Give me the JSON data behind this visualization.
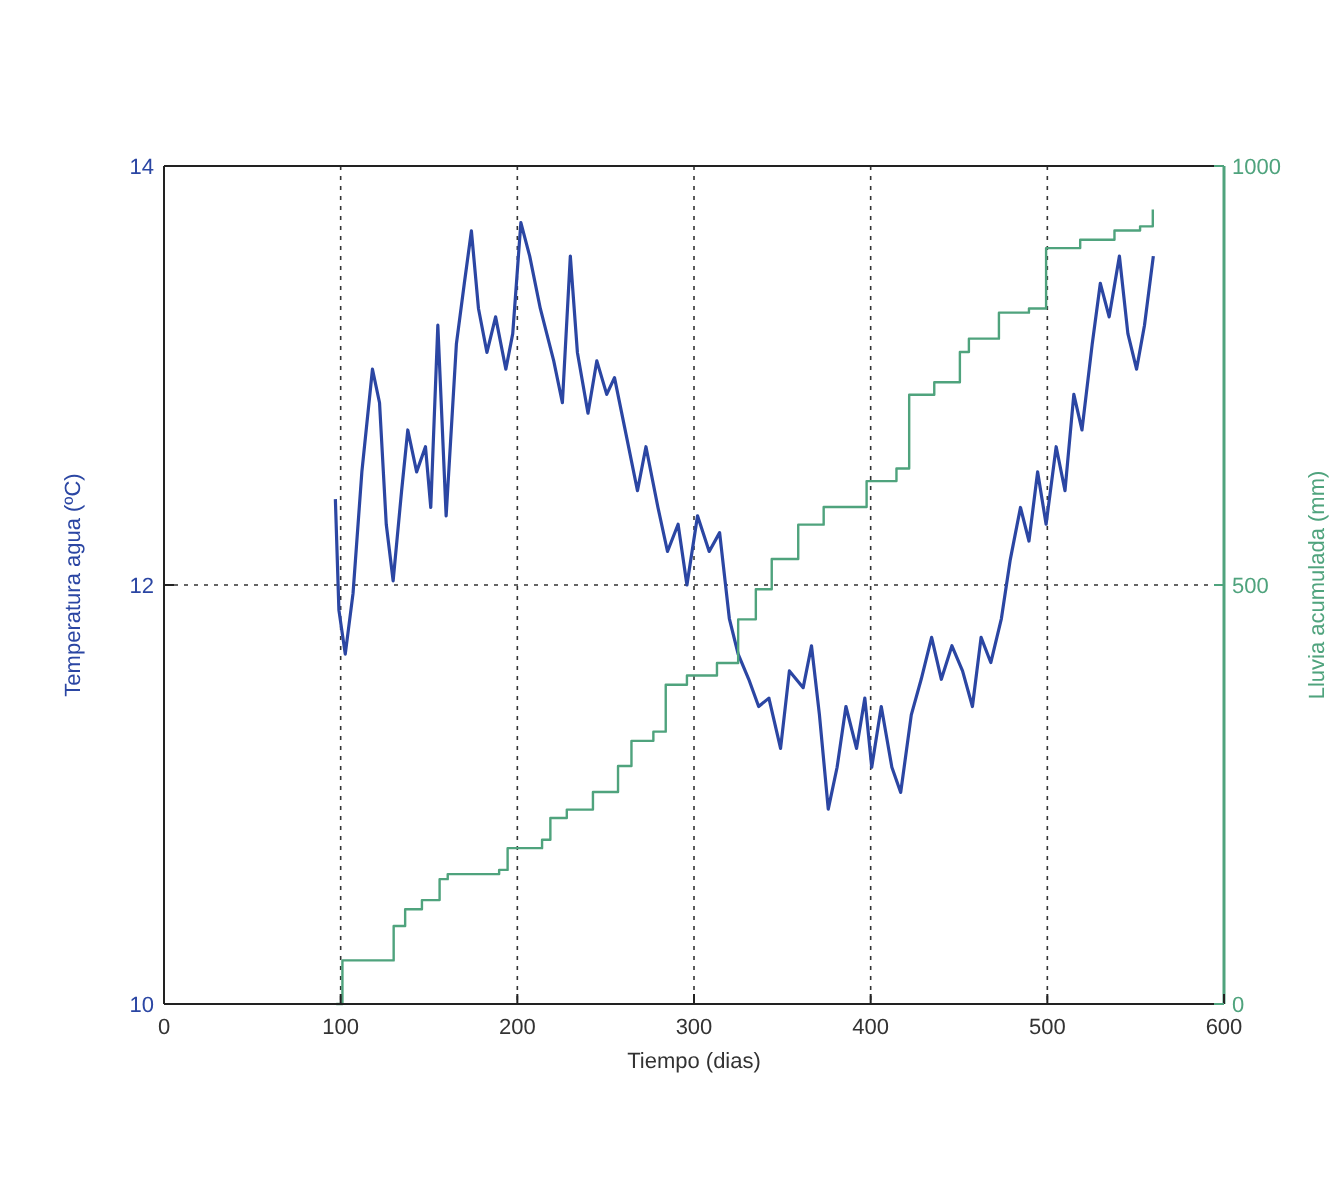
{
  "chart_data": {
    "type": "line",
    "xlabel": "Tiempo (dias)",
    "ylabel": "Temperatura agua (ºC)",
    "y2label": "Lluvia acumulada (mm)",
    "xlim": [
      0,
      600
    ],
    "xticks": [
      0,
      100,
      200,
      300,
      400,
      500,
      600
    ],
    "ylim": [
      10,
      14
    ],
    "yticks": [
      10,
      12,
      14
    ],
    "y2lim": [
      0,
      1000
    ],
    "y2ticks": [
      0,
      500,
      1000
    ],
    "grid": true,
    "line_style": "solid",
    "series": [
      {
        "color": "#2b46a3",
        "x": [
          97,
          99,
          102.6,
          107,
          112,
          118,
          122,
          125.8,
          129.7,
          134.5,
          138,
          143,
          148,
          151,
          155,
          159.7,
          165.5,
          170,
          174,
          178,
          182.8,
          187.7,
          193.5,
          197.4,
          202,
          207,
          213,
          220.6,
          225.5,
          230,
          234,
          240,
          245,
          250.6,
          255,
          262,
          268,
          272.8,
          279.6,
          285,
          291,
          296,
          302,
          308.6,
          314.5,
          320,
          325,
          331,
          336.6,
          342.4,
          349,
          354,
          361.8,
          366.5,
          371,
          376,
          381,
          386,
          392,
          396.7,
          400.6,
          406,
          412,
          417,
          423,
          428.6,
          434.5,
          440,
          446,
          452,
          457.6,
          462.5,
          468,
          474,
          479,
          484.8,
          489.6,
          494.5,
          499.3,
          505,
          510,
          515,
          519.6,
          525.4,
          530,
          535,
          540.8,
          545.6,
          550.5,
          555,
          560
        ],
        "values": [
          12.41,
          11.88,
          11.67,
          11.96,
          12.54,
          13.03,
          12.87,
          12.29,
          12.02,
          12.45,
          12.74,
          12.54,
          12.66,
          12.37,
          13.24,
          12.33,
          13.15,
          13.44,
          13.69,
          13.32,
          13.11,
          13.28,
          13.03,
          13.2,
          13.73,
          13.57,
          13.32,
          13.07,
          12.87,
          13.57,
          13.11,
          12.82,
          13.07,
          12.91,
          12.99,
          12.7,
          12.45,
          12.66,
          12.37,
          12.16,
          12.29,
          12.0,
          12.33,
          12.16,
          12.25,
          11.84,
          11.67,
          11.55,
          11.42,
          11.46,
          11.22,
          11.59,
          11.51,
          11.71,
          11.38,
          10.93,
          11.13,
          11.42,
          11.22,
          11.46,
          11.13,
          11.42,
          11.13,
          11.01,
          11.38,
          11.55,
          11.75,
          11.55,
          11.71,
          11.59,
          11.42,
          11.75,
          11.63,
          11.84,
          12.12,
          12.37,
          12.21,
          12.54,
          12.29,
          12.66,
          12.45,
          12.91,
          12.74,
          13.15,
          13.44,
          13.28,
          13.57,
          13.2,
          13.03,
          13.24,
          13.57
        ]
      },
      {
        "type": "step",
        "axis": "y2",
        "color": "#4fa37d",
        "x": [
          97.5,
          101,
          125,
          130,
          136.5,
          146,
          156,
          160.6,
          189.7,
          194.5,
          214,
          218.7,
          228,
          242.8,
          257,
          264.6,
          277,
          284,
          296,
          313,
          325,
          335,
          344,
          359,
          373.4,
          397.7,
          414.6,
          421.8,
          436,
          450.5,
          455.6,
          472.6,
          489.6,
          499.3,
          518.6,
          538,
          552.5,
          559.7
        ],
        "values": [
          0,
          52,
          52,
          93,
          113,
          124,
          149,
          155,
          160,
          186,
          196,
          222,
          232,
          253,
          284,
          314,
          325,
          381,
          392,
          407,
          459,
          495,
          531,
          572,
          593,
          624,
          639,
          727,
          742,
          778,
          794,
          825,
          830,
          902,
          912,
          923,
          928,
          948
        ]
      }
    ]
  }
}
